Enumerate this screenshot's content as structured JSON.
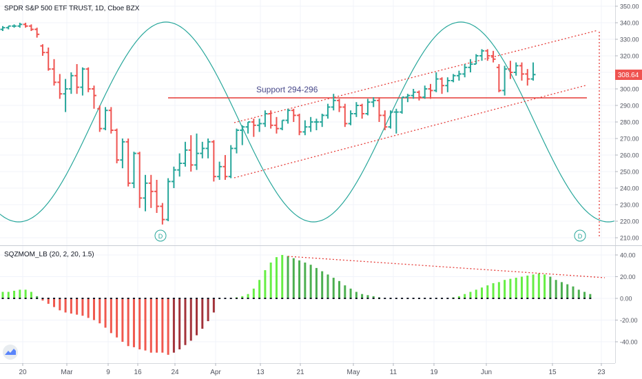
{
  "header": {
    "symbol_title": "SPDR S&P 500 ETF TRUST, 1D, Cboe BZX",
    "indicator_title": "SQZMOM_LB (20, 2, 20, 1.5)"
  },
  "annotations": {
    "support_label": "Support 294-296",
    "cycle_marker_left": "D",
    "cycle_marker_right": "D"
  },
  "price_badge": "308.64",
  "colors": {
    "up": "#26a69a",
    "down": "#ef5350",
    "support": "#e53935",
    "channel": "#e53935",
    "sine": "#26a69a",
    "badge": "#ef5350",
    "mom_lime": "#66ee44",
    "mom_green": "#4caf50",
    "mom_red": "#f0584e",
    "mom_maroon": "#a3333a"
  },
  "x_axis_labels": [
    "20",
    "Mar",
    "9",
    "16",
    "24",
    "Apr",
    "13",
    "21",
    "May",
    "11",
    "19",
    "Jun",
    "15",
    "23"
  ],
  "chart_data": [
    {
      "type": "ohlc",
      "title": "SPDR S&P 500 ETF TRUST, 1D, Cboe BZX",
      "ylim": [
        205,
        352
      ],
      "y_ticks": [
        "350.00",
        "340.00",
        "330.00",
        "320.00",
        "310.00",
        "300.00",
        "290.00",
        "280.00",
        "270.00",
        "260.00",
        "250.00",
        "240.00",
        "230.00",
        "220.00",
        "210.00"
      ],
      "last_price": 308.64,
      "support_level": 295,
      "support_label": "Support 294-296",
      "bars": [
        [
          336,
          338,
          335,
          337
        ],
        [
          337,
          338,
          336,
          338
        ],
        [
          338,
          339,
          337,
          338
        ],
        [
          338,
          340,
          337,
          339
        ],
        [
          339,
          340,
          337,
          338
        ],
        [
          338,
          339,
          335,
          336
        ],
        [
          336,
          337,
          331,
          333
        ],
        [
          326,
          327,
          320,
          322
        ],
        [
          322,
          325,
          311,
          312
        ],
        [
          312,
          318,
          302,
          304
        ],
        [
          304,
          309,
          294,
          297
        ],
        [
          297,
          306,
          286,
          300
        ],
        [
          300,
          310,
          297,
          308
        ],
        [
          308,
          315,
          297,
          301
        ],
        [
          301,
          313,
          296,
          312
        ],
        [
          312,
          313,
          298,
          300
        ],
        [
          300,
          302,
          288,
          296
        ],
        [
          288,
          290,
          274,
          276
        ],
        [
          276,
          289,
          275,
          287
        ],
        [
          287,
          289,
          273,
          275
        ],
        [
          275,
          276,
          255,
          257
        ],
        [
          257,
          270,
          252,
          268
        ],
        [
          268,
          270,
          241,
          243
        ],
        [
          243,
          262,
          240,
          261
        ],
        [
          261,
          262,
          228,
          234
        ],
        [
          234,
          248,
          226,
          243
        ],
        [
          243,
          248,
          228,
          238
        ],
        [
          238,
          245,
          225,
          229
        ],
        [
          229,
          231,
          218,
          221
        ],
        [
          221,
          246,
          220,
          244
        ],
        [
          244,
          253,
          240,
          251
        ],
        [
          251,
          261,
          247,
          255
        ],
        [
          255,
          268,
          253,
          263
        ],
        [
          263,
          272,
          250,
          254
        ],
        [
          254,
          273,
          251,
          261
        ],
        [
          261,
          268,
          258,
          264
        ],
        [
          264,
          270,
          258,
          268
        ],
        [
          268,
          269,
          244,
          247
        ],
        [
          247,
          256,
          245,
          253
        ],
        [
          253,
          260,
          245,
          247
        ],
        [
          247,
          266,
          246,
          264
        ],
        [
          264,
          276,
          261,
          275
        ],
        [
          275,
          278,
          266,
          277
        ],
        [
          277,
          280,
          273,
          280
        ],
        [
          280,
          282,
          271,
          278
        ],
        [
          278,
          282,
          274,
          279
        ],
        [
          279,
          287,
          277,
          285
        ],
        [
          285,
          287,
          276,
          278
        ],
        [
          278,
          283,
          273,
          276
        ],
        [
          276,
          281,
          275,
          281
        ],
        [
          281,
          288,
          279,
          287
        ],
        [
          287,
          288,
          280,
          284
        ],
        [
          284,
          285,
          272,
          274
        ],
        [
          274,
          281,
          272,
          277
        ],
        [
          277,
          283,
          274,
          280
        ],
        [
          280,
          282,
          275,
          280
        ],
        [
          280,
          285,
          277,
          284
        ],
        [
          284,
          291,
          282,
          289
        ],
        [
          289,
          297,
          287,
          293
        ],
        [
          293,
          294,
          286,
          289
        ],
        [
          289,
          291,
          277,
          279
        ],
        [
          279,
          287,
          278,
          285
        ],
        [
          285,
          292,
          283,
          290
        ],
        [
          290,
          291,
          282,
          285
        ],
        [
          285,
          294,
          284,
          292
        ],
        [
          292,
          295,
          289,
          293
        ],
        [
          293,
          295,
          280,
          284
        ],
        [
          284,
          287,
          275,
          277
        ],
        [
          277,
          287,
          276,
          286
        ],
        [
          286,
          288,
          273,
          286
        ],
        [
          286,
          295,
          285,
          295
        ],
        [
          295,
          297,
          292,
          296
        ],
        [
          296,
          300,
          294,
          298
        ],
        [
          298,
          299,
          293,
          295
        ],
        [
          295,
          302,
          294,
          300
        ],
        [
          300,
          303,
          294,
          299
        ],
        [
          299,
          310,
          298,
          306
        ],
        [
          306,
          307,
          297,
          302
        ],
        [
          302,
          307,
          298,
          305
        ],
        [
          305,
          309,
          304,
          308
        ],
        [
          308,
          311,
          305,
          309
        ],
        [
          309,
          315,
          307,
          313
        ],
        [
          313,
          318,
          310,
          315
        ],
        [
          315,
          321,
          315,
          320
        ],
        [
          320,
          324,
          317,
          323
        ],
        [
          323,
          324,
          317,
          320
        ],
        [
          320,
          323,
          316,
          318
        ],
        [
          313,
          315,
          298,
          299
        ],
        [
          299,
          314,
          296,
          312
        ],
        [
          312,
          317,
          306,
          310
        ],
        [
          310,
          316,
          308,
          314
        ],
        [
          314,
          316,
          305,
          309
        ],
        [
          309,
          312,
          302,
          306
        ],
        [
          306,
          316,
          305,
          308.64
        ]
      ]
    },
    {
      "type": "bar",
      "title": "SQZMOM_LB (20, 2, 20, 1.5)",
      "ylim": [
        -53,
        43
      ],
      "y_ticks": [
        "40.00",
        "20.00",
        "0.00",
        "-20.00",
        "-40.00"
      ],
      "values": [
        6,
        6,
        7,
        8,
        8,
        6,
        2,
        -2,
        -5,
        -8,
        -11,
        -13,
        -14,
        -15,
        -16,
        -18,
        -20,
        -23,
        -27,
        -32,
        -36,
        -40,
        -44,
        -45,
        -47,
        -48,
        -50,
        -50,
        -50,
        -52,
        -50,
        -47,
        -43,
        -39,
        -34,
        -28,
        -21,
        -13,
        0,
        0,
        0,
        1,
        2,
        4,
        9,
        17,
        26,
        33,
        38,
        40,
        39,
        37,
        35,
        33,
        31,
        28,
        25,
        22,
        19,
        16,
        12,
        9,
        6,
        4,
        3,
        2,
        1,
        0,
        0,
        0,
        0,
        0,
        0,
        0,
        0,
        0,
        0,
        0,
        0,
        1,
        2,
        4,
        6,
        8,
        10,
        12,
        14,
        15,
        17,
        18,
        19,
        20,
        21,
        22,
        23,
        22,
        20,
        17,
        15,
        13,
        11,
        8,
        6,
        4
      ],
      "bar_color_keys": [
        "lime",
        "lime",
        "lime",
        "lime",
        "lime",
        "lime",
        "green",
        "red",
        "red",
        "red",
        "red",
        "red",
        "red",
        "red",
        "red",
        "red",
        "red",
        "red",
        "red",
        "red",
        "red",
        "red",
        "red",
        "red",
        "red",
        "red",
        "red",
        "red",
        "red",
        "red",
        "maroon",
        "maroon",
        "maroon",
        "maroon",
        "maroon",
        "maroon",
        "maroon",
        "maroon",
        "lime",
        "lime",
        "lime",
        "lime",
        "lime",
        "lime",
        "lime",
        "lime",
        "lime",
        "lime",
        "lime",
        "lime",
        "green",
        "green",
        "green",
        "green",
        "green",
        "green",
        "green",
        "green",
        "green",
        "green",
        "green",
        "green",
        "green",
        "green",
        "green",
        "green",
        "green",
        "green",
        "green",
        "green",
        "green",
        "green",
        "green",
        "green",
        "green",
        "green",
        "green",
        "green",
        "green",
        "lime",
        "lime",
        "lime",
        "lime",
        "lime",
        "lime",
        "lime",
        "lime",
        "lime",
        "lime",
        "lime",
        "lime",
        "lime",
        "lime",
        "lime",
        "lime",
        "lime",
        "green",
        "green",
        "green",
        "green",
        "green",
        "green",
        "green",
        "green",
        "green"
      ],
      "squeeze_dots": "black"
    }
  ]
}
